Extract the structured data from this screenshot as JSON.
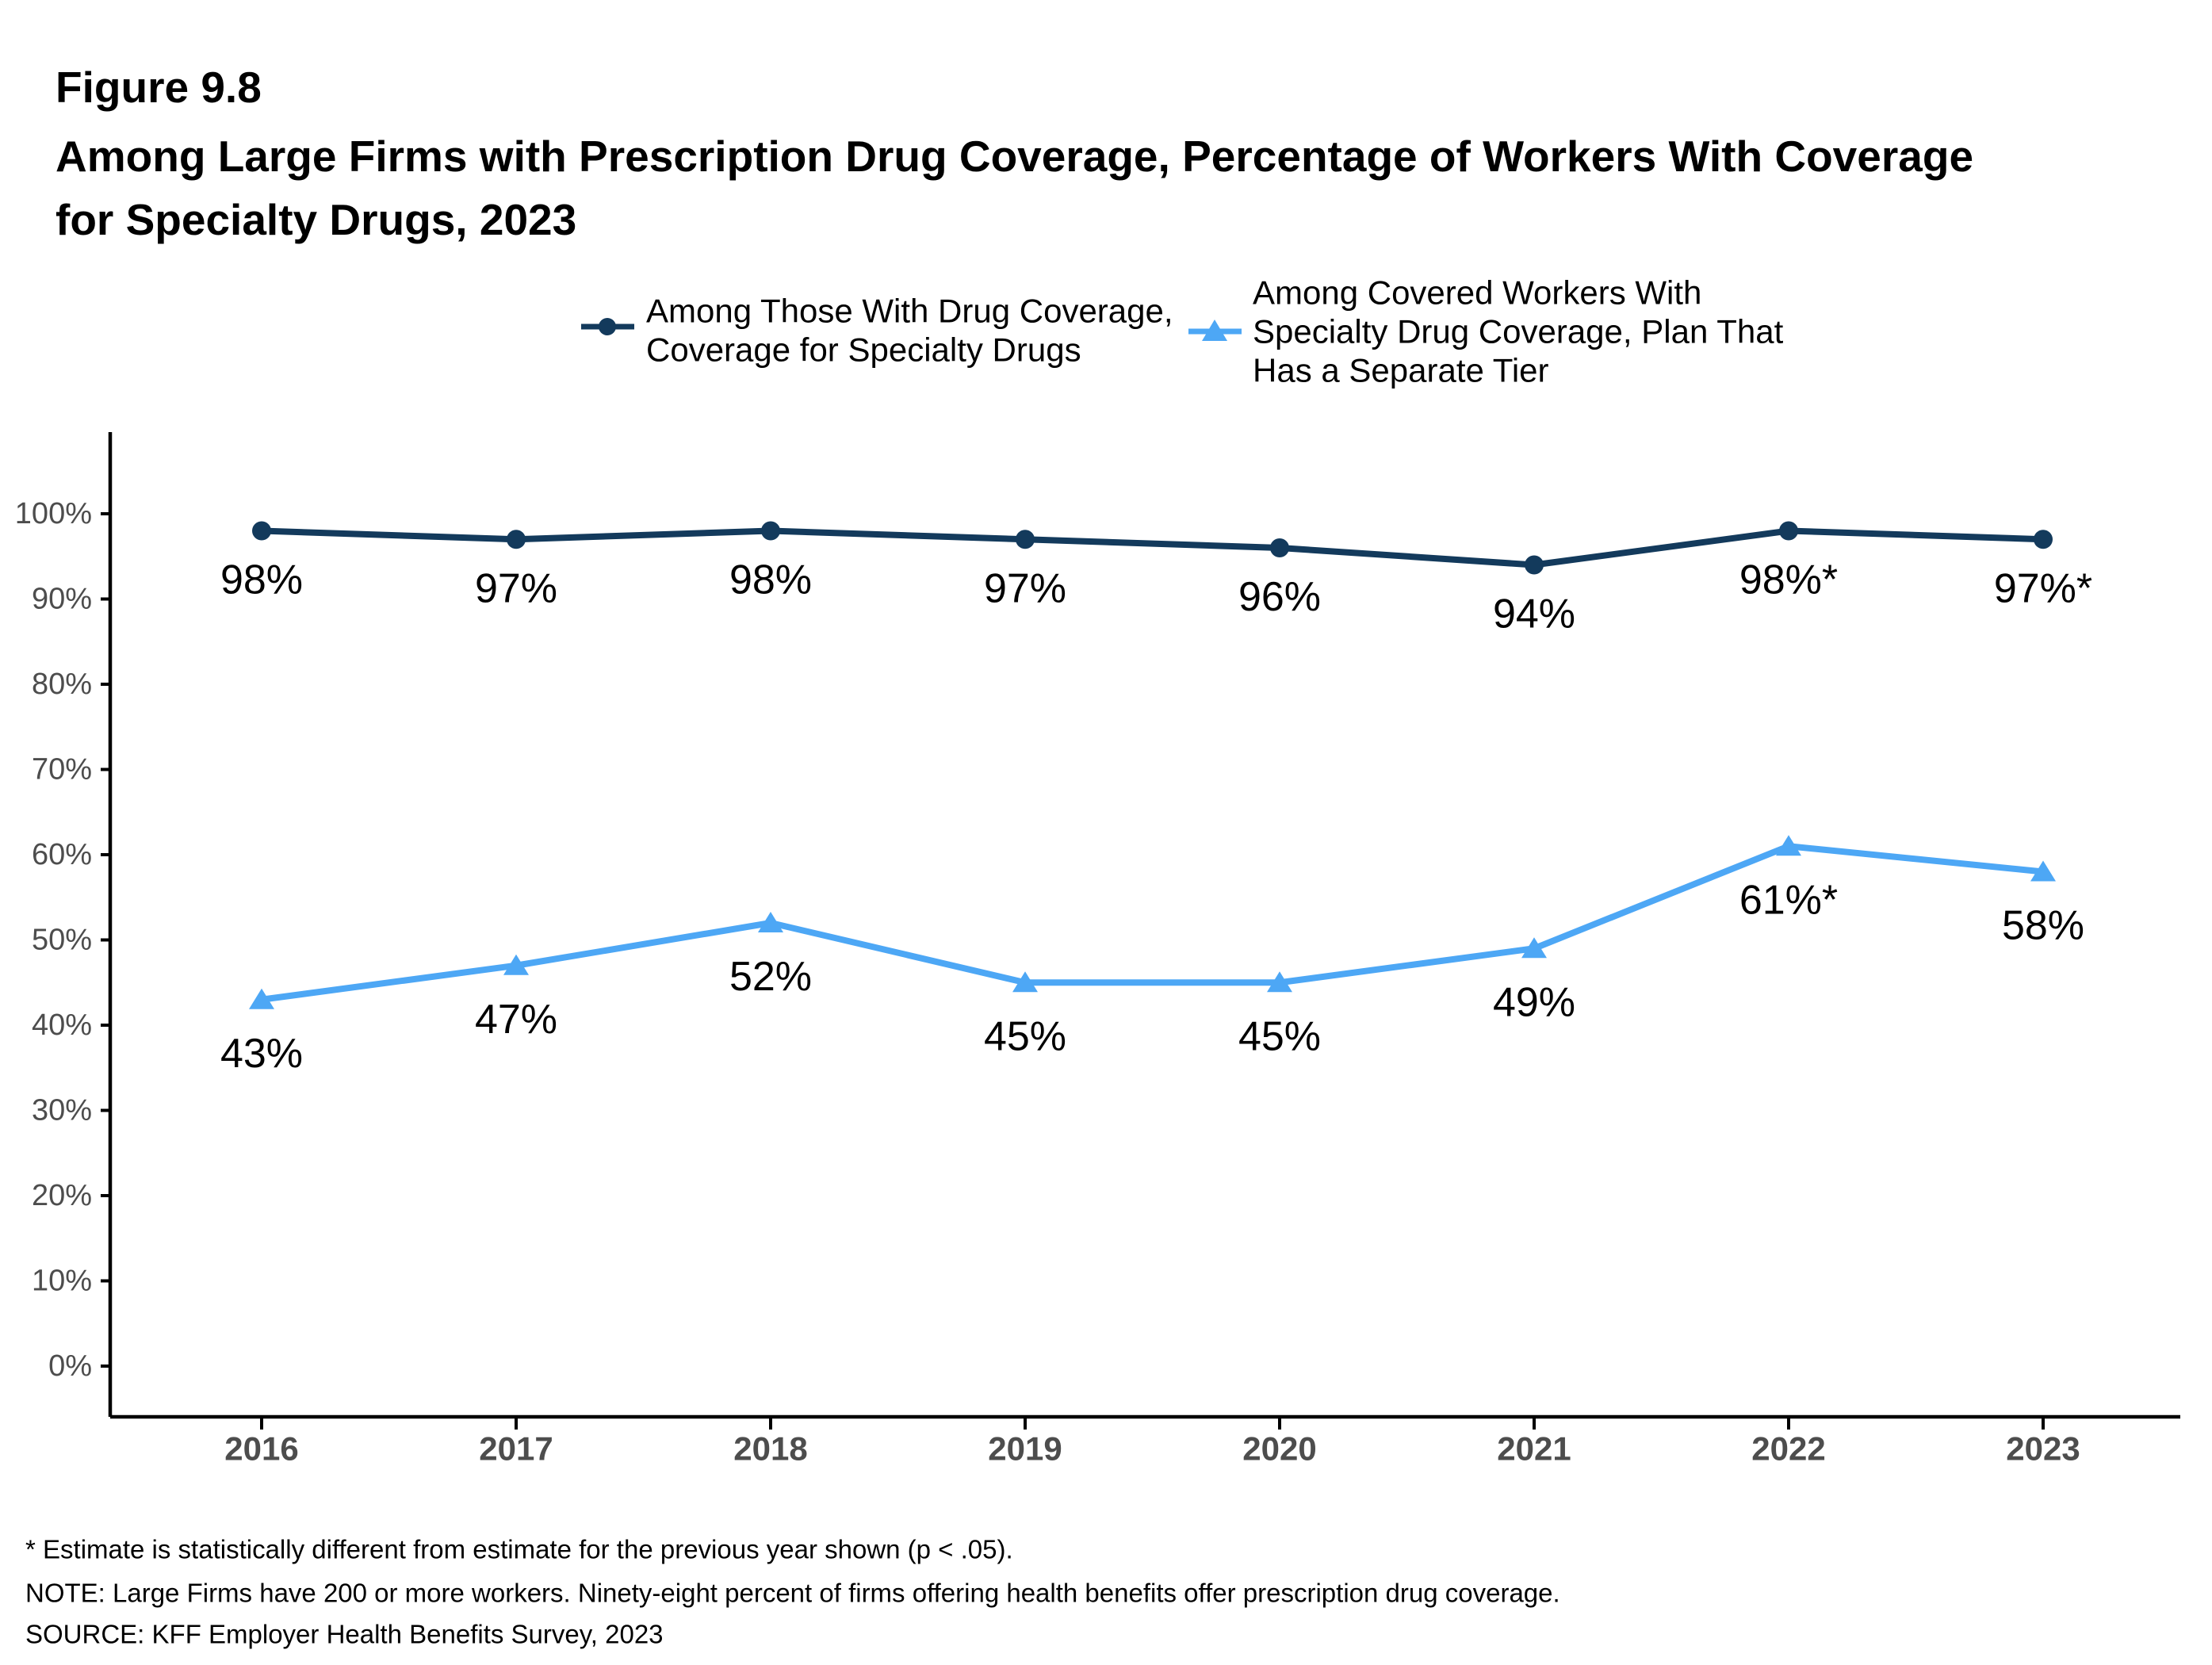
{
  "figure": {
    "label": "Figure 9.8",
    "title_line1": "Among Large Firms with Prescription Drug Coverage, Percentage of Workers With Coverage",
    "title_line2": "for Specialty Drugs, 2023"
  },
  "legend": {
    "items": [
      {
        "marker": "circle-on-line",
        "color": "#133A5C",
        "lines": [
          "Among Those With Drug Coverage,",
          "Coverage for Specialty Drugs"
        ]
      },
      {
        "marker": "triangle-on-line",
        "color": "#4DA7F5",
        "lines": [
          "Among Covered Workers With",
          "Specialty Drug Coverage, Plan That",
          "Has a Separate Tier"
        ]
      }
    ]
  },
  "chart_data": {
    "type": "line",
    "x": [
      "2016",
      "2017",
      "2018",
      "2019",
      "2020",
      "2021",
      "2022",
      "2023"
    ],
    "series": [
      {
        "name": "Among Those With Drug Coverage, Coverage for Specialty Drugs",
        "color": "#133A5C",
        "marker": "circle",
        "values": [
          98,
          97,
          98,
          97,
          96,
          94,
          98,
          97
        ],
        "labels": [
          "98%",
          "97%",
          "98%",
          "97%",
          "96%",
          "94%",
          "98%*",
          "97%*"
        ]
      },
      {
        "name": "Among Covered Workers With Specialty Drug Coverage, Plan That Has a Separate Tier",
        "color": "#4DA7F5",
        "marker": "triangle",
        "values": [
          43,
          47,
          52,
          45,
          45,
          49,
          61,
          58
        ],
        "labels": [
          "43%",
          "47%",
          "52%",
          "45%",
          "45%",
          "49%",
          "61%*",
          "58%"
        ]
      }
    ],
    "ylim": [
      0,
      100
    ],
    "ytick_step": 10,
    "yticks": [
      "0%",
      "10%",
      "20%",
      "30%",
      "40%",
      "50%",
      "60%",
      "70%",
      "80%",
      "90%",
      "100%"
    ],
    "grid": "off",
    "legend_position": "top",
    "axis_text_color": "#4D4D4D",
    "axis_line_color": "#000000",
    "data_label_color": "#000000"
  },
  "footnotes": {
    "lines": [
      "* Estimate is statistically different from estimate for the previous year shown (p < .05).",
      "NOTE: Large Firms have 200 or more workers. Ninety-eight percent of firms offering health benefits offer prescription drug coverage.",
      "SOURCE: KFF Employer Health Benefits Survey, 2023"
    ]
  }
}
